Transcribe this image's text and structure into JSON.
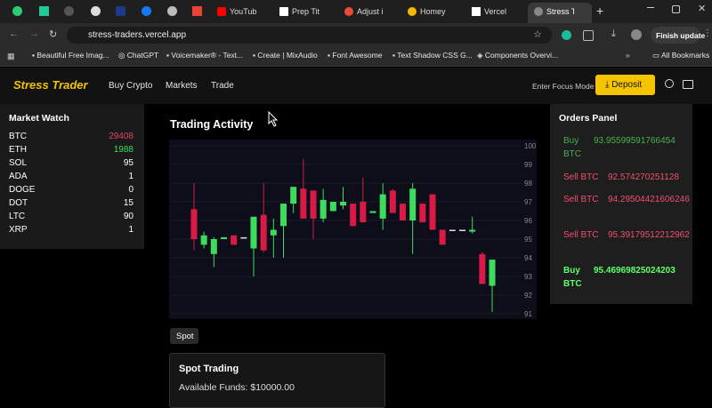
{
  "tabs": [
    "YouTub",
    "Prep Tit",
    "Adjust i",
    "Homey",
    "Vercel",
    "Stress T"
  ],
  "url": "stress-traders.vercel.app",
  "finish_update": "Finish update",
  "bookmarks": [
    "Beautiful Free Imag...",
    "ChatGPT",
    "Voicemaker® - Text...",
    "Create | MixAudio",
    "Font Awesome",
    "Text Shadow CSS G...",
    "Components Overvi..."
  ],
  "all_bookmarks": "All Bookmarks",
  "nav": {
    "brand": "Stress Trader",
    "links": [
      "Buy Crypto",
      "Markets",
      "Trade"
    ],
    "focus": "Enter Focus Mode",
    "deposit": "Deposit"
  },
  "market_watch": {
    "title": "Market Watch",
    "items": [
      {
        "symbol": "BTC",
        "price": 29408,
        "color": "#e0455f"
      },
      {
        "symbol": "ETH",
        "price": 1988,
        "color": "#3ddc5e"
      },
      {
        "symbol": "SOL",
        "price": 95,
        "color": "#ffffff"
      },
      {
        "symbol": "ADA",
        "price": 1,
        "color": "#ffffff"
      },
      {
        "symbol": "DOGE",
        "price": 0,
        "color": "#ffffff"
      },
      {
        "symbol": "DOT",
        "price": 15,
        "color": "#ffffff"
      },
      {
        "symbol": "LTC",
        "price": 90,
        "color": "#ffffff"
      },
      {
        "symbol": "XRP",
        "price": 1,
        "color": "#ffffff"
      }
    ]
  },
  "orders": {
    "title": "Orders Panel",
    "items": [
      {
        "label": "Buy BTC",
        "amount": 93.95599591766454,
        "color": "#4caf50"
      },
      {
        "label": "Sell BTC",
        "amount": 92.574270251128,
        "color": "#f0506e"
      },
      {
        "label": "Sell BTC",
        "amount": 94.29504421606246,
        "color": "#f0506e"
      },
      {
        "label": "Sell BTC",
        "amount": 95.39179512212962,
        "color": "#f0506e"
      },
      {
        "label": "Buy BTC",
        "amount": 95.46969825024203,
        "color": "#5dff6a"
      }
    ]
  },
  "chart_data": {
    "type": "candlestick",
    "title": "Trading Activity",
    "open": [
      96.6,
      94.7,
      94.2,
      95.0,
      95.2,
      95.1,
      94.5,
      96.3,
      95.2,
      95.7,
      96.9,
      97.7,
      97.6,
      96.1,
      96.5,
      96.8,
      96.9,
      97.0,
      96.4,
      96.1,
      97.6,
      96.9,
      96.0,
      96.9,
      97.4,
      95.5,
      95.5,
      95.5,
      95.4,
      94.2,
      92.5
    ],
    "high": [
      98.0,
      95.4,
      95.1,
      95.1,
      95.2,
      95.1,
      96.2,
      98.0,
      96.1,
      96.9,
      97.8,
      99.3,
      97.6,
      97.7,
      97.0,
      97.8,
      96.9,
      98.3,
      96.5,
      98.0,
      97.7,
      96.9,
      98.0,
      96.9,
      97.4,
      95.5,
      95.5,
      95.5,
      96.2,
      94.3,
      93.9
    ],
    "low": [
      94.4,
      94.5,
      93.5,
      95.0,
      94.7,
      95.1,
      93.0,
      94.3,
      94.0,
      94.0,
      96.4,
      96.1,
      95.0,
      95.9,
      96.5,
      96.6,
      95.7,
      95.9,
      96.4,
      95.5,
      96.4,
      96.0,
      94.2,
      95.9,
      95.5,
      94.7,
      95.5,
      95.5,
      95.3,
      92.6,
      91.1
    ],
    "close": [
      95.0,
      95.2,
      95.0,
      95.1,
      94.7,
      95.1,
      96.2,
      94.4,
      95.5,
      96.9,
      97.8,
      96.1,
      96.1,
      97.1,
      97.0,
      97.0,
      95.7,
      95.9,
      96.5,
      97.4,
      96.4,
      96.0,
      97.7,
      95.9,
      95.5,
      94.7,
      95.5,
      95.5,
      95.5,
      92.6,
      93.9
    ],
    "up_color": "#3ddc5e",
    "down_color": "#d81b46",
    "flat_color": "#e0e0e0",
    "ylim": [
      91,
      100
    ],
    "yticks": [
      91,
      92,
      93,
      94,
      95,
      96,
      97,
      98,
      99,
      100
    ],
    "grid": true
  },
  "spot": {
    "tab": "Spot",
    "title": "Spot Trading",
    "funds": "Available Funds: $10000.00"
  }
}
